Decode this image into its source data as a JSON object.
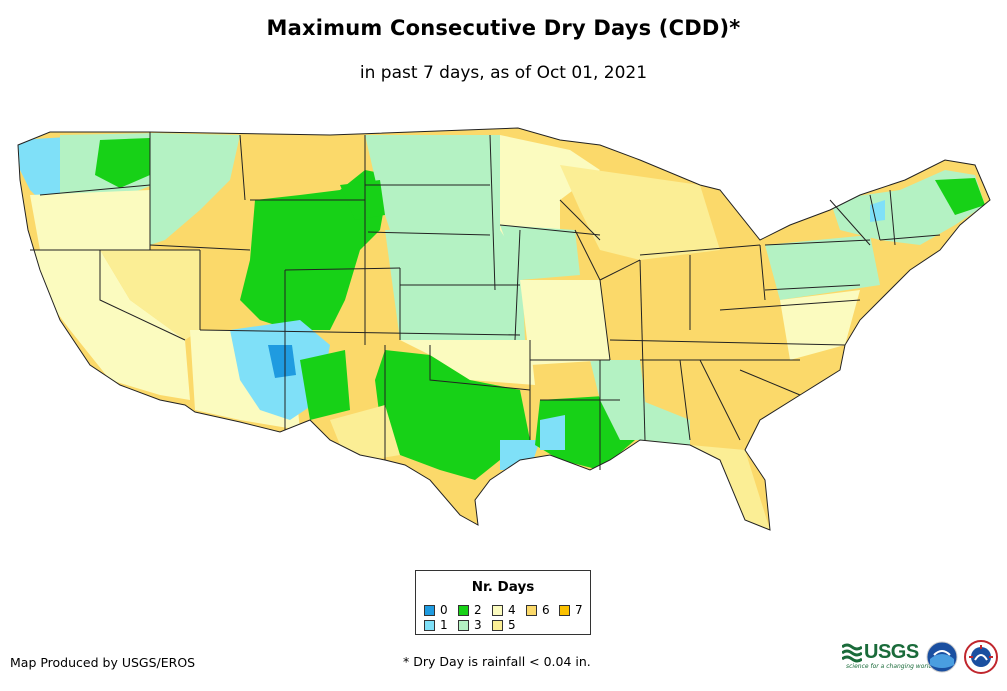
{
  "header": {
    "title": "Maximum Consecutive Dry Days (CDD)*",
    "subtitle": "in past 7 days, as of Oct 01, 2021"
  },
  "legend": {
    "title": "Nr. Days",
    "items": [
      {
        "label": "0",
        "color": "#1f9be0"
      },
      {
        "label": "1",
        "color": "#7fe0f8"
      },
      {
        "label": "2",
        "color": "#17d117"
      },
      {
        "label": "3",
        "color": "#b4f2c3"
      },
      {
        "label": "4",
        "color": "#fbfbbf"
      },
      {
        "label": "5",
        "color": "#fbee95"
      },
      {
        "label": "6",
        "color": "#fbd96a"
      },
      {
        "label": "7",
        "color": "#fbc100"
      }
    ]
  },
  "footer": {
    "credit": "Map Produced by USGS/EROS",
    "note": "* Dry Day is rainfall < 0.04 in."
  },
  "logos": {
    "usgs": "USGS",
    "usgs_tagline": "science for a changing world",
    "noaa": "NOAA",
    "nws": "National Weather Service"
  }
}
